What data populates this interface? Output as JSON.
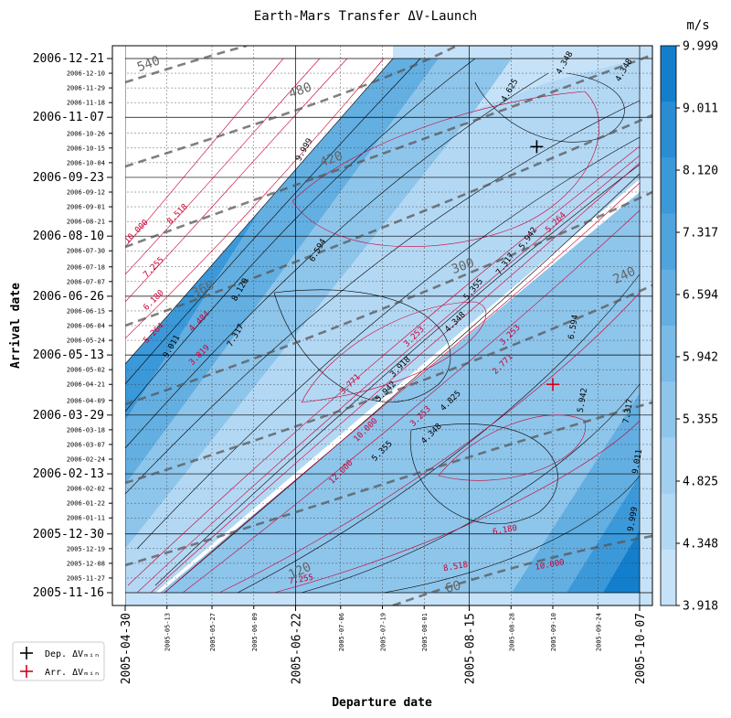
{
  "chart_data": {
    "type": "contour",
    "title": "Earth-Mars Transfer ΔV-Launch",
    "xlabel": "Departure date",
    "ylabel": "Arrival date",
    "colorbar_unit": "m/s",
    "colorbar_ticks": [
      "3.918",
      "4.348",
      "4.825",
      "5.355",
      "5.942",
      "6.594",
      "7.317",
      "8.120",
      "9.011",
      "9.999"
    ],
    "colorbar_levels": [
      3.918,
      4.348,
      4.825,
      5.355,
      5.942,
      6.594,
      7.317,
      8.12,
      9.011,
      9.999
    ],
    "colorbar_colors": [
      "#c6e2f8",
      "#b3d8f4",
      "#a1cfef",
      "#8ec5eb",
      "#79bae7",
      "#63afe2",
      "#4fa4de",
      "#3c99d9",
      "#2a8dd4",
      "#137fcc"
    ],
    "x_major_ticks": [
      "2005-04-30",
      "2005-06-22",
      "2005-08-15",
      "2005-10-07"
    ],
    "x_minor_ticks": [
      "2005-05-13",
      "2005-05-27",
      "2005-06-09",
      "2005-07-06",
      "2005-07-19",
      "2005-08-01",
      "2005-08-28",
      "2005-09-10",
      "2005-09-24"
    ],
    "y_major_ticks": [
      "2005-11-16",
      "2005-12-30",
      "2006-02-13",
      "2006-03-29",
      "2006-05-13",
      "2006-06-26",
      "2006-08-10",
      "2006-09-23",
      "2006-11-07",
      "2006-12-21"
    ],
    "y_minor_ticks": [
      "2005-11-27",
      "2005-12-08",
      "2005-12-19",
      "2006-01-11",
      "2006-01-22",
      "2006-02-02",
      "2006-02-24",
      "2006-03-07",
      "2006-03-18",
      "2006-04-09",
      "2006-04-21",
      "2006-05-02",
      "2006-05-24",
      "2006-06-04",
      "2006-06-15",
      "2006-07-07",
      "2006-07-18",
      "2006-07-30",
      "2006-08-21",
      "2006-09-01",
      "2006-09-12",
      "2006-10-04",
      "2006-10-15",
      "2006-10-26",
      "2006-11-18",
      "2006-11-29",
      "2006-12-10"
    ],
    "tof_labels": [
      "60",
      "120",
      "240",
      "300",
      "360",
      "420",
      "480",
      "540"
    ],
    "departure_dv_labels": [
      "9.999",
      "9.011",
      "8.120",
      "7.317",
      "6.594",
      "5.942",
      "5.355",
      "4.825",
      "4.348",
      "3.918"
    ],
    "arrival_dv_labels": [
      "10.000",
      "8.518",
      "7.255",
      "6.180",
      "5.264",
      "4.484",
      "3.819",
      "3.253",
      "2.771"
    ],
    "markers": [
      {
        "name": "Dep. ΔVₘᵢₙ",
        "departure": "2005-09-05",
        "arrival": "2006-10-16",
        "color": "#000000"
      },
      {
        "name": "Arr. ΔVₘᵢₙ",
        "departure": "2005-09-10",
        "arrival": "2006-04-21",
        "color": "#d0021b"
      }
    ],
    "legend": {
      "position": "bottom-left",
      "entries": [
        "Dep. ΔVₘᵢₙ",
        "Arr. ΔVₘᵢₙ"
      ]
    }
  }
}
